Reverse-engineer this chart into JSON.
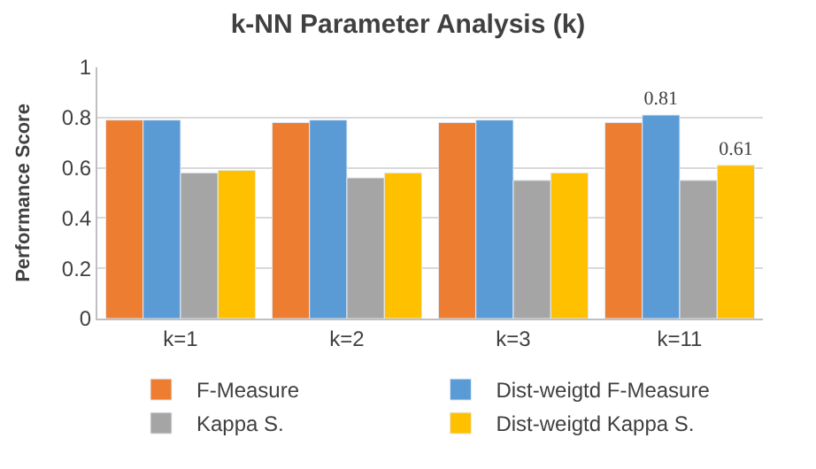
{
  "chart_data": {
    "type": "bar",
    "title": "k-NN Parameter Analysis (k)",
    "ylabel": "Performance Score",
    "categories": [
      "k=1",
      "k=2",
      "k=3",
      "k=11"
    ],
    "series": [
      {
        "name": "F-Measure",
        "color": "#ed7d31",
        "values": [
          0.79,
          0.78,
          0.78,
          0.78
        ]
      },
      {
        "name": "Dist-weigtd F-Measure",
        "color": "#5b9bd5",
        "values": [
          0.79,
          0.79,
          0.79,
          0.81
        ],
        "value_labels": [
          null,
          null,
          null,
          "0.81"
        ]
      },
      {
        "name": "Kappa S.",
        "color": "#a5a5a5",
        "values": [
          0.58,
          0.56,
          0.55,
          0.55
        ]
      },
      {
        "name": "Dist-weigtd Kappa S.",
        "color": "#ffc000",
        "values": [
          0.59,
          0.58,
          0.58,
          0.61
        ],
        "value_labels": [
          null,
          null,
          null,
          "0.61"
        ]
      }
    ],
    "ylim": [
      0,
      1
    ],
    "yticks": [
      0,
      0.2,
      0.4,
      0.6,
      0.8,
      1
    ],
    "grid": "y",
    "legend": "bottom"
  }
}
